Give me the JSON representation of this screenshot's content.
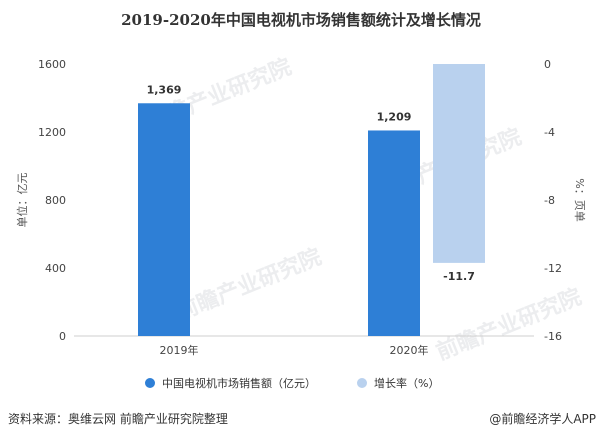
{
  "chart_data": {
    "type": "bar",
    "title": "2019-2020年中国电视机市场销售额统计及增长情况",
    "categories": [
      "2019年",
      "2020年"
    ],
    "series": [
      {
        "name": "中国电视机市场销售额（亿元）",
        "axis": "left",
        "values": [
          1369,
          1209
        ],
        "labels": [
          "1,369",
          "1,209"
        ],
        "color": "#2e7fd6"
      },
      {
        "name": "增长率（%）",
        "axis": "right",
        "values": [
          null,
          -11.7
        ],
        "labels": [
          "",
          "-11.7"
        ],
        "color": "#b9d1ee"
      }
    ],
    "y_left": {
      "label": "单位：亿元",
      "range": [
        0,
        1600
      ],
      "ticks": [
        0,
        400,
        800,
        1200,
        1600
      ]
    },
    "y_right": {
      "label": "%：页单",
      "range": [
        -16,
        0
      ],
      "ticks": [
        0,
        -4,
        -8,
        -12,
        -16
      ]
    },
    "legend_position": "bottom",
    "grid": false
  },
  "footer": {
    "source": "资料来源：奥维云网 前瞻产业研究院整理",
    "brand": "@前瞻经济学人APP"
  },
  "watermark": {
    "text": "前瞻产业研究院"
  }
}
